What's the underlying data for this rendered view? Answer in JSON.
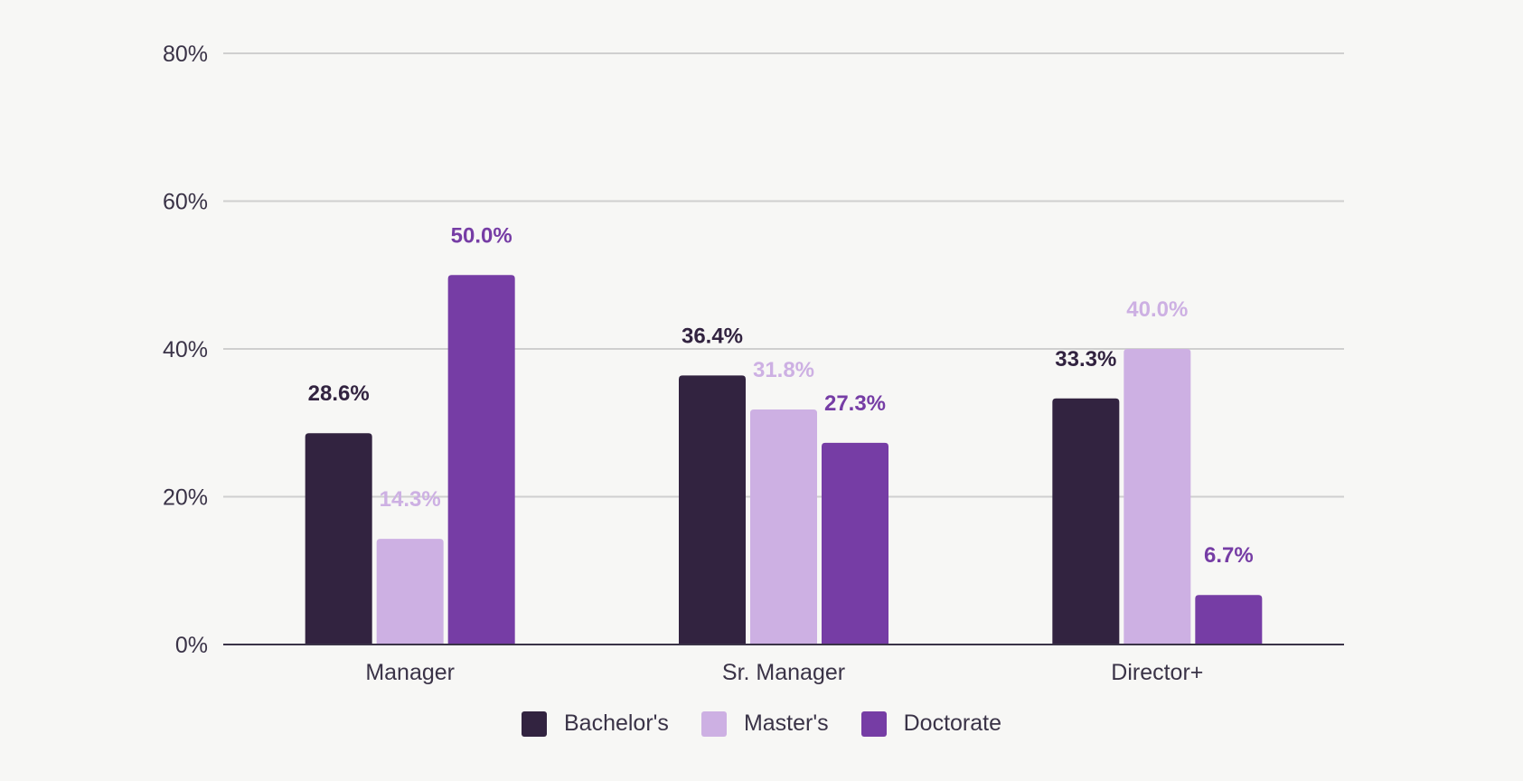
{
  "chart_data": {
    "type": "bar",
    "categories": [
      "Manager",
      "Sr. Manager",
      "Director+"
    ],
    "series": [
      {
        "name": "Bachelor's",
        "values": [
          28.6,
          36.4,
          33.3
        ],
        "color": "#322340",
        "label_color": "#322340"
      },
      {
        "name": "Master's",
        "values": [
          14.3,
          31.8,
          40.0
        ],
        "color": "#cdb0e3",
        "label_color": "#cdb0e3"
      },
      {
        "name": "Doctorate",
        "values": [
          50.0,
          27.3,
          6.7
        ],
        "color": "#763da5",
        "label_color": "#763da5"
      }
    ],
    "y_ticks": [
      "0%",
      "20%",
      "40%",
      "60%",
      "80%"
    ],
    "ylim": [
      0,
      80
    ],
    "grid": true,
    "legend_position": "bottom",
    "value_format": "percent-1dp"
  }
}
